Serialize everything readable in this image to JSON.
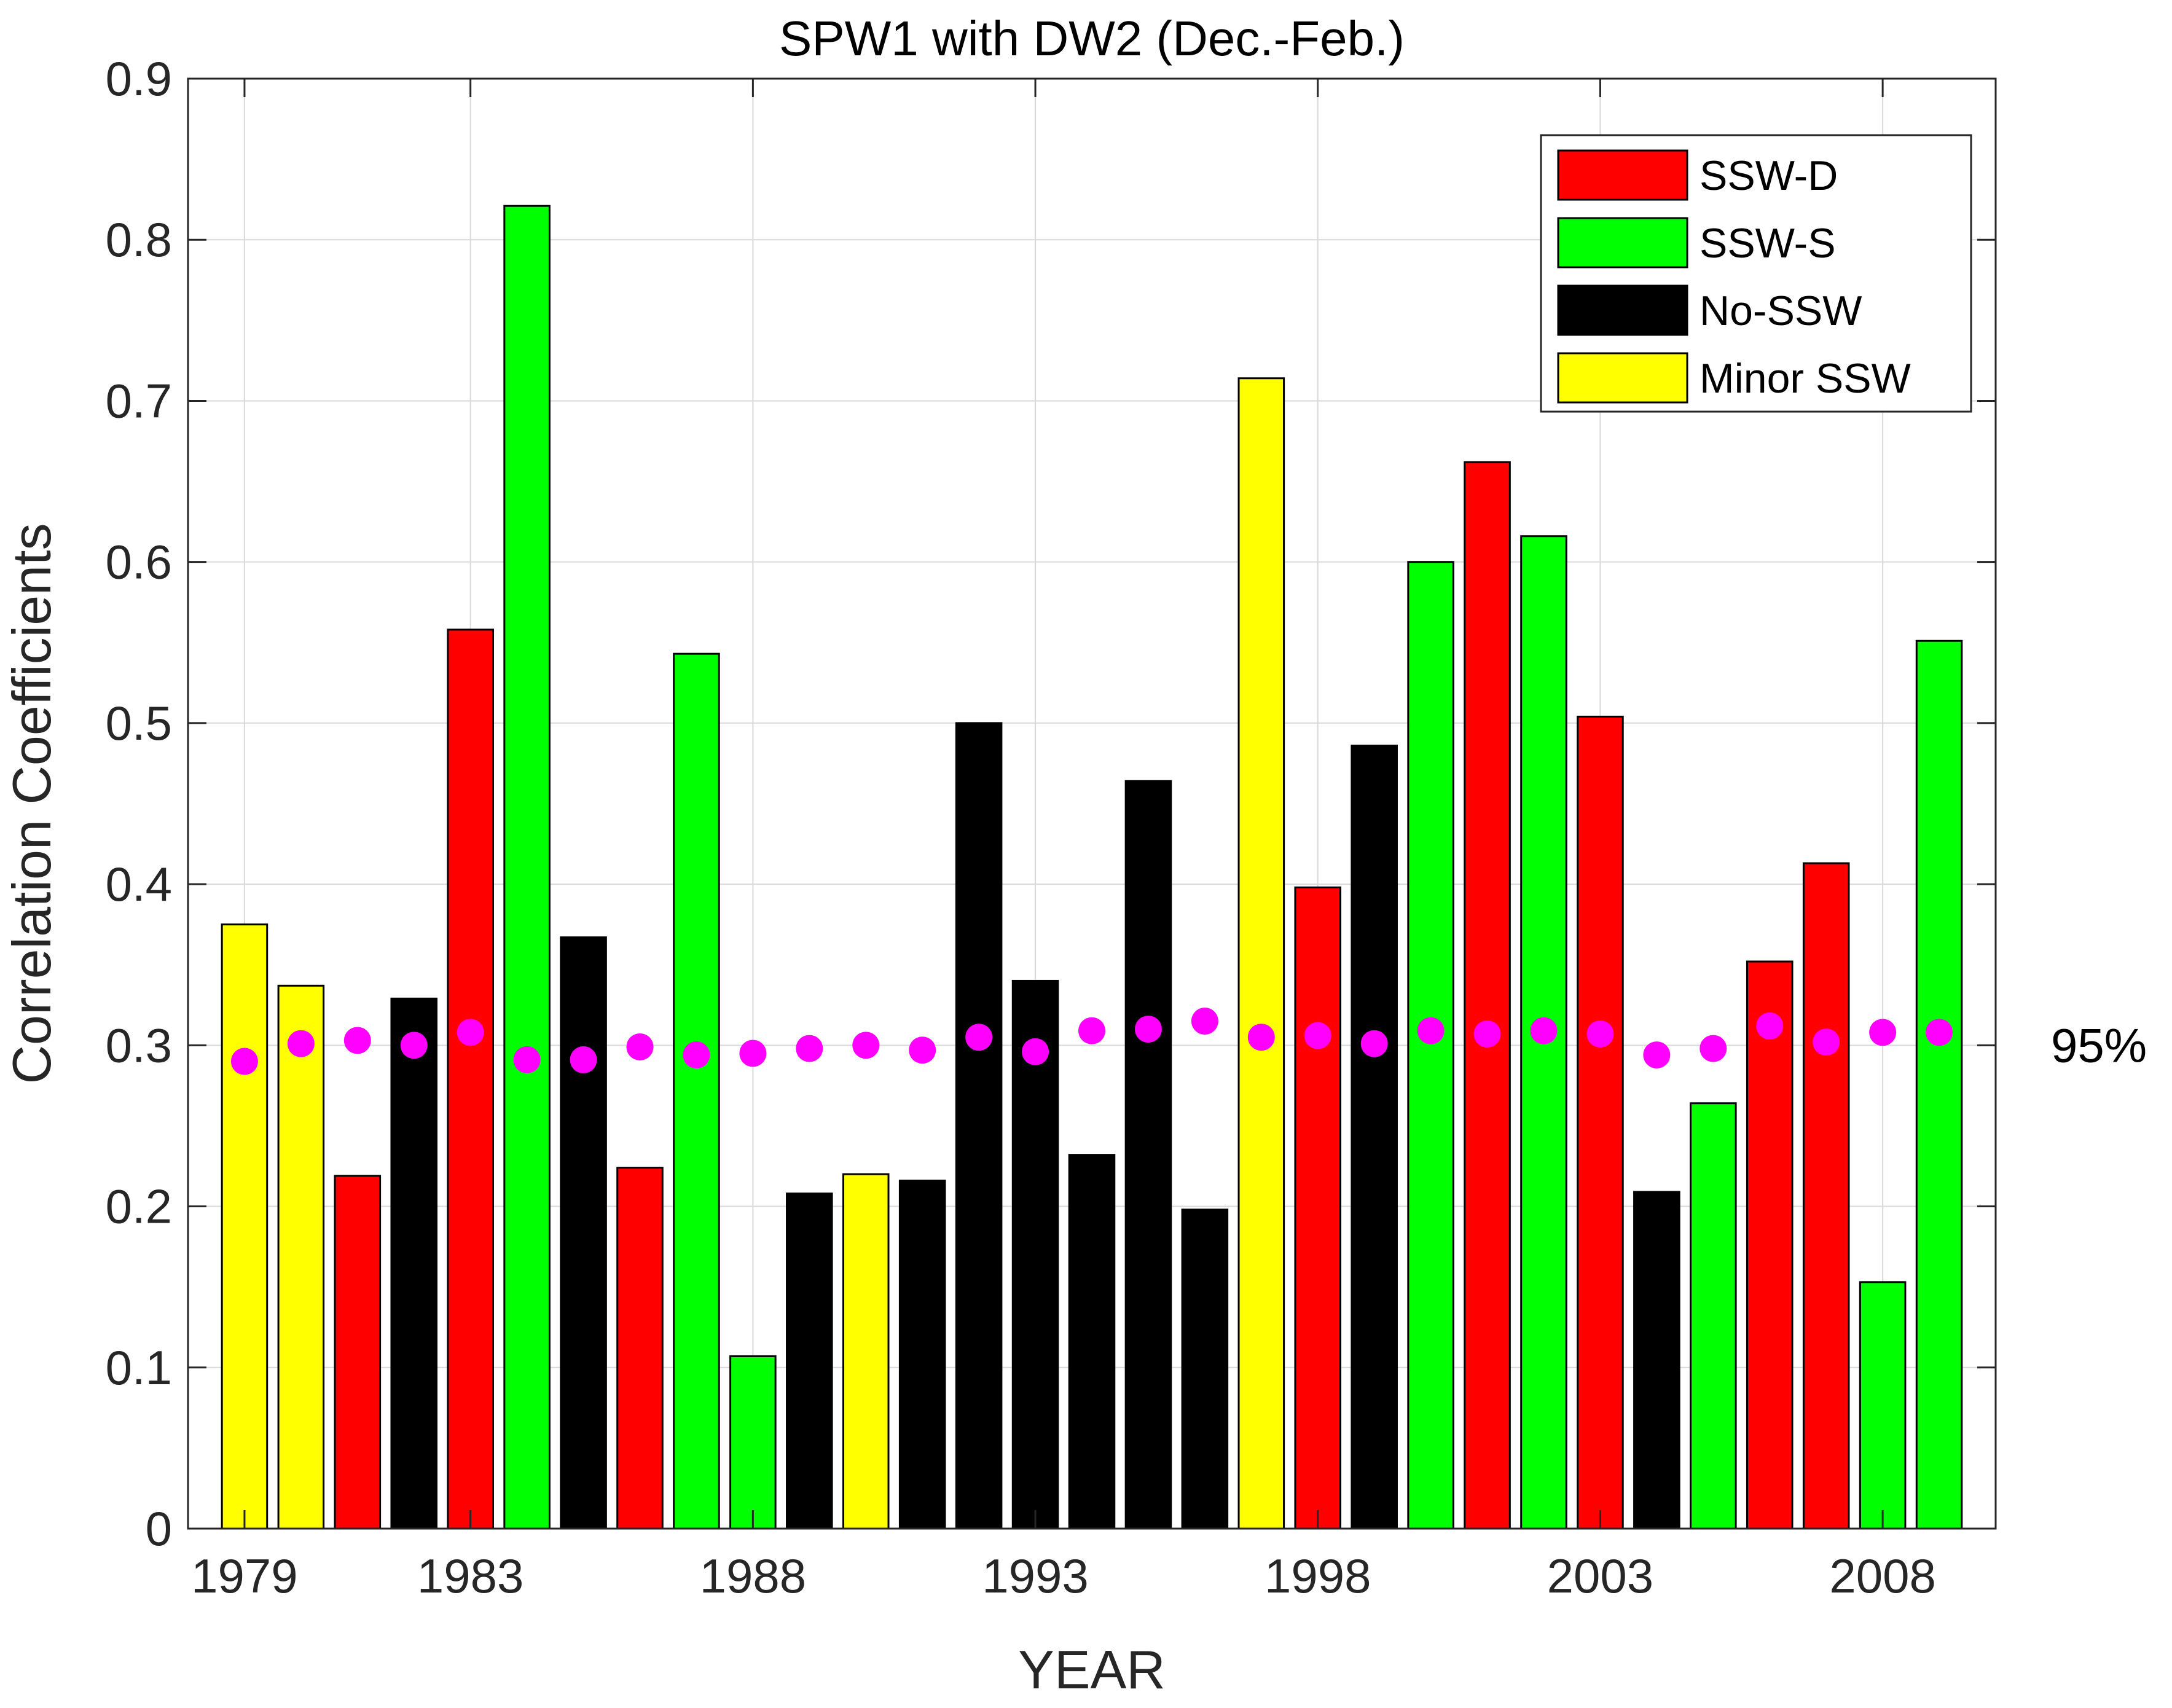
{
  "chart_data": {
    "type": "bar",
    "title": "SPW1 with DW2 (Dec.-Feb.)",
    "xlabel": "YEAR",
    "ylabel": "Correlation Coefficients",
    "ylim": [
      0,
      0.9
    ],
    "yticks": [
      "0",
      "0.1",
      "0.2",
      "0.3",
      "0.4",
      "0.5",
      "0.6",
      "0.7",
      "0.8",
      "0.9"
    ],
    "xtick_years": [
      1979,
      1983,
      1988,
      1993,
      1998,
      2003,
      2008
    ],
    "xtick_labels": [
      "1979",
      "1983",
      "1988",
      "1993",
      "1998",
      "2003",
      "2008"
    ],
    "grid": true,
    "legend_position": "top-right",
    "legend": [
      {
        "key": "D",
        "label": "SSW-D",
        "color": "#ff0000"
      },
      {
        "key": "S",
        "label": "SSW-S",
        "color": "#00ff00"
      },
      {
        "key": "N",
        "label": "No-SSW",
        "color": "#000000"
      },
      {
        "key": "M",
        "label": "Minor SSW",
        "color": "#ffff00"
      }
    ],
    "years": [
      1979,
      1980,
      1981,
      1982,
      1983,
      1984,
      1985,
      1986,
      1987,
      1988,
      1989,
      1990,
      1991,
      1992,
      1993,
      1994,
      1995,
      1996,
      1997,
      1998,
      1999,
      2000,
      2001,
      2002,
      2003,
      2004,
      2005,
      2006,
      2007,
      2008,
      2009
    ],
    "values": [
      0.375,
      0.337,
      0.219,
      0.329,
      0.558,
      0.821,
      0.367,
      0.224,
      0.543,
      0.107,
      0.208,
      0.22,
      0.216,
      0.5,
      0.34,
      0.232,
      0.464,
      0.198,
      0.714,
      0.398,
      0.486,
      0.6,
      0.662,
      0.616,
      0.504,
      0.209,
      0.264,
      0.352,
      0.413,
      0.153,
      0.551
    ],
    "categories": [
      "M",
      "M",
      "D",
      "N",
      "D",
      "S",
      "N",
      "D",
      "S",
      "S",
      "N",
      "M",
      "N",
      "N",
      "N",
      "N",
      "N",
      "N",
      "M",
      "D",
      "N",
      "S",
      "D",
      "S",
      "D",
      "N",
      "S",
      "D",
      "D",
      "S",
      "S"
    ],
    "significance": {
      "label": "95%",
      "color": "#ff00ff",
      "values": [
        0.29,
        0.301,
        0.303,
        0.3,
        0.308,
        0.291,
        0.291,
        0.299,
        0.294,
        0.295,
        0.298,
        0.3,
        0.297,
        0.305,
        0.296,
        0.309,
        0.31,
        0.315,
        0.305,
        0.306,
        0.301,
        0.309,
        0.307,
        0.309,
        0.307,
        0.294,
        0.298,
        0.312,
        0.302,
        0.308,
        0.308
      ]
    }
  }
}
